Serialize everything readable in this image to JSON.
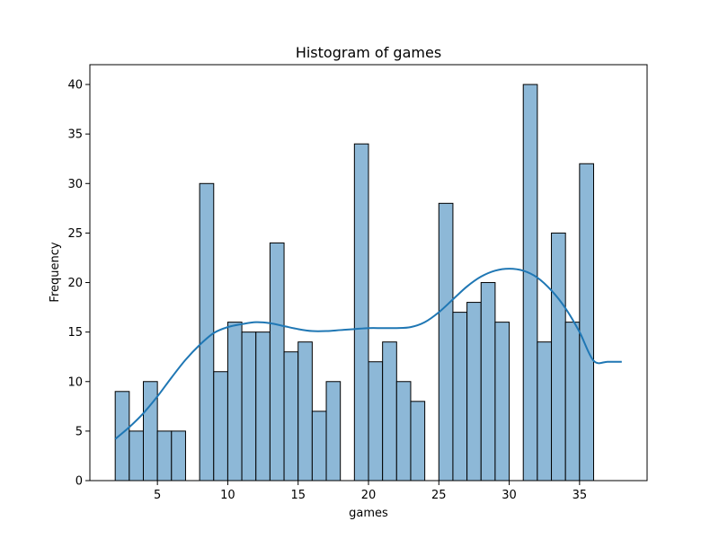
{
  "chart_data": {
    "type": "bar",
    "title": "Histogram of games",
    "xlabel": "games",
    "ylabel": "Frequency",
    "xlim": [
      0.2,
      39.8
    ],
    "ylim": [
      0,
      42
    ],
    "xticks": [
      5,
      10,
      15,
      20,
      25,
      30,
      35
    ],
    "yticks": [
      0,
      5,
      10,
      15,
      20,
      25,
      30,
      35,
      40
    ],
    "grid": false,
    "bar_color": "#8db8d7",
    "edge_color": "#000000",
    "kde_color": "#1f77b4",
    "bins": [
      {
        "x0": 2.0,
        "x1": 3.0,
        "count": 9
      },
      {
        "x0": 3.0,
        "x1": 4.0,
        "count": 5
      },
      {
        "x0": 4.0,
        "x1": 5.0,
        "count": 10
      },
      {
        "x0": 5.0,
        "x1": 6.0,
        "count": 5
      },
      {
        "x0": 6.0,
        "x1": 7.0,
        "count": 5
      },
      {
        "x0": 8.0,
        "x1": 9.0,
        "count": 30
      },
      {
        "x0": 9.0,
        "x1": 10.0,
        "count": 11
      },
      {
        "x0": 10.0,
        "x1": 11.0,
        "count": 16
      },
      {
        "x0": 11.0,
        "x1": 12.0,
        "count": 15
      },
      {
        "x0": 12.0,
        "x1": 13.0,
        "count": 15
      },
      {
        "x0": 13.0,
        "x1": 14.0,
        "count": 24
      },
      {
        "x0": 14.0,
        "x1": 15.0,
        "count": 13
      },
      {
        "x0": 15.0,
        "x1": 16.0,
        "count": 14
      },
      {
        "x0": 16.0,
        "x1": 17.0,
        "count": 7
      },
      {
        "x0": 17.0,
        "x1": 18.0,
        "count": 10
      },
      {
        "x0": 19.0,
        "x1": 20.0,
        "count": 34
      },
      {
        "x0": 20.0,
        "x1": 21.0,
        "count": 12
      },
      {
        "x0": 21.0,
        "x1": 22.0,
        "count": 14
      },
      {
        "x0": 22.0,
        "x1": 23.0,
        "count": 10
      },
      {
        "x0": 23.0,
        "x1": 24.0,
        "count": 8
      },
      {
        "x0": 25.0,
        "x1": 26.0,
        "count": 28
      },
      {
        "x0": 26.0,
        "x1": 27.0,
        "count": 17
      },
      {
        "x0": 27.0,
        "x1": 28.0,
        "count": 18
      },
      {
        "x0": 28.0,
        "x1": 29.0,
        "count": 20
      },
      {
        "x0": 29.0,
        "x1": 30.0,
        "count": 16
      },
      {
        "x0": 31.0,
        "x1": 32.0,
        "count": 40
      },
      {
        "x0": 32.0,
        "x1": 33.0,
        "count": 14
      },
      {
        "x0": 33.0,
        "x1": 34.0,
        "count": 25
      },
      {
        "x0": 34.0,
        "x1": 35.0,
        "count": 16
      },
      {
        "x0": 35.0,
        "x1": 36.0,
        "count": 32
      }
    ],
    "kde": {
      "x": [
        2.0,
        3.0,
        4.0,
        5.0,
        6.0,
        7.0,
        8.0,
        9.0,
        10.0,
        11.0,
        12.0,
        13.0,
        14.0,
        15.0,
        16.0,
        17.0,
        18.0,
        19.0,
        20.0,
        21.0,
        22.0,
        23.0,
        24.0,
        25.0,
        26.0,
        27.0,
        28.0,
        29.0,
        30.0,
        31.0,
        32.0,
        33.0,
        34.0,
        35.0,
        36.0,
        37.0,
        38.0
      ],
      "y": [
        4.2,
        5.4,
        6.8,
        8.5,
        10.4,
        12.2,
        13.7,
        14.9,
        15.5,
        15.8,
        16.0,
        15.9,
        15.6,
        15.3,
        15.1,
        15.1,
        15.2,
        15.3,
        15.4,
        15.4,
        15.4,
        15.5,
        16.0,
        17.0,
        18.3,
        19.6,
        20.6,
        21.2,
        21.4,
        21.2,
        20.5,
        19.2,
        17.4,
        15.0,
        12.1,
        12.0,
        12.0
      ]
    }
  }
}
